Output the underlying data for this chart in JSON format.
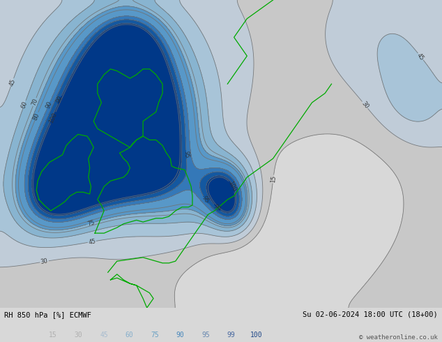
{
  "title_left": "RH 850 hPa [%] ECMWF",
  "title_right": "Su 02-06-2024 18:00 UTC (18+00)",
  "copyright": "© weatheronline.co.uk",
  "figsize": [
    6.34,
    4.9
  ],
  "dpi": 100,
  "lon_min": -13,
  "lon_max": 21,
  "lat_min": 46,
  "lat_max": 62.5,
  "fill_levels": [
    0,
    15,
    30,
    45,
    60,
    75,
    90,
    95,
    99,
    105
  ],
  "fill_colors": [
    "#d8d8d8",
    "#c8c8c8",
    "#c0ccd8",
    "#a8c4d8",
    "#88b4d0",
    "#5898c8",
    "#3478b8",
    "#1458a0",
    "#003888"
  ],
  "contour_levels": [
    15,
    30,
    45,
    60,
    70,
    75,
    80,
    90,
    95,
    99,
    100
  ],
  "contour_color": "#707070",
  "label_color": "#303030",
  "colorbar_labels": [
    "15",
    "30",
    "45",
    "60",
    "75",
    "90",
    "95",
    "99",
    "100"
  ],
  "colorbar_label_colors": [
    "#b0b0b0",
    "#b0b0b0",
    "#a8bcd0",
    "#88b0cc",
    "#68a0c4",
    "#4888bc",
    "#6888b0",
    "#4868a0",
    "#204888"
  ]
}
